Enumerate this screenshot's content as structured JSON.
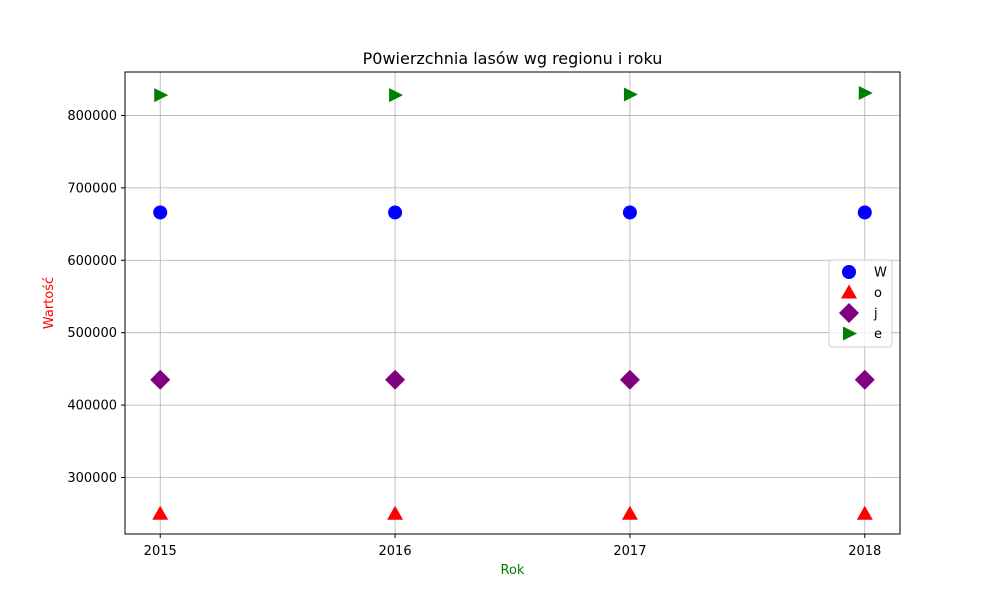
{
  "chart_data": {
    "type": "scatter",
    "title": "P0wierzchnia lasów wg regionu i roku",
    "xlabel": "Rok",
    "ylabel": "Wartość",
    "xlabel_color": "#008000",
    "ylabel_color": "#ff0000",
    "x": [
      2015,
      2016,
      2017,
      2018
    ],
    "xlim": [
      2014.85,
      2018.15
    ],
    "ylim": [
      222000,
      860000
    ],
    "yticks": [
      300000,
      400000,
      500000,
      600000,
      700000,
      800000
    ],
    "grid": true,
    "legend_position": "center-right",
    "series": [
      {
        "name": "W",
        "marker": "circle",
        "color": "#0000ff",
        "values": [
          666000,
          666000,
          666000,
          666000
        ]
      },
      {
        "name": "o",
        "marker": "triangle-up",
        "color": "#ff0000",
        "values": [
          250000,
          250000,
          250000,
          250000
        ]
      },
      {
        "name": "j",
        "marker": "diamond",
        "color": "#800080",
        "values": [
          435000,
          435000,
          435000,
          435000
        ]
      },
      {
        "name": "e",
        "marker": "triangle-right",
        "color": "#008000",
        "values": [
          828000,
          828000,
          829000,
          831000
        ]
      }
    ]
  }
}
